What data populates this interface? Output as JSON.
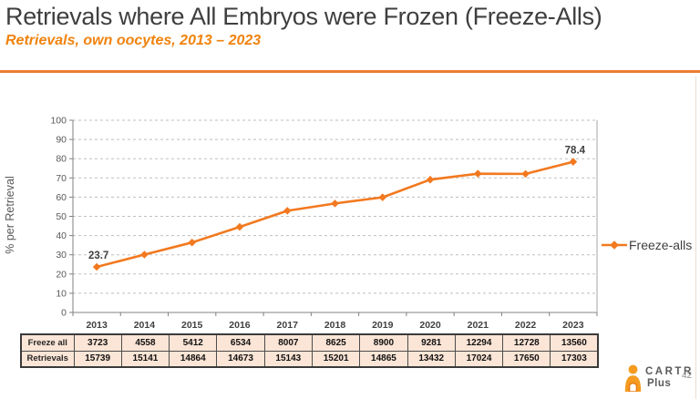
{
  "slide": {
    "title": "Retrievals where All Embryos were Frozen (Freeze-Alls)",
    "subtitle": "Retrievals, own oocytes, 2013 – 2023",
    "page_number": "42"
  },
  "logo": {
    "line1": "CARTR",
    "line2": "Plus",
    "icon": "person-icon"
  },
  "colors": {
    "accent_orange": "#f2791f",
    "subtitle_orange": "#f0830f",
    "divider_orange": "#ed7d31",
    "title_gray": "#3f3f3f",
    "axis_gray": "#595959",
    "gridline_gray": "#bfbfbf",
    "table_fill": "#fbe5d6",
    "table_border": "#4d4d4d"
  },
  "chart_data": {
    "type": "line",
    "title": "",
    "xlabel": "",
    "ylabel": "% per Retrieval",
    "categories": [
      "2013",
      "2014",
      "2015",
      "2016",
      "2017",
      "2018",
      "2019",
      "2020",
      "2021",
      "2022",
      "2023"
    ],
    "series": [
      {
        "name": "Freeze-alls",
        "color": "#f2791f",
        "marker": "diamond",
        "values": [
          23.7,
          30.1,
          36.4,
          44.5,
          52.9,
          56.7,
          59.9,
          69.1,
          72.2,
          72.1,
          78.4
        ]
      }
    ],
    "ylim": [
      0,
      100
    ],
    "ytick_step": 10,
    "grid": true,
    "gridline_style": "dashed",
    "legend_position": "right",
    "point_labels": [
      {
        "index": 0,
        "text": "23.7"
      },
      {
        "index": 10,
        "text": "78.4"
      }
    ]
  },
  "table": {
    "rows": [
      {
        "label": "Freeze all",
        "values": [
          "3723",
          "4558",
          "5412",
          "6534",
          "8007",
          "8625",
          "8900",
          "9281",
          "12294",
          "12728",
          "13560"
        ]
      },
      {
        "label": "Retrievals",
        "values": [
          "15739",
          "15141",
          "14864",
          "14673",
          "15143",
          "15201",
          "14865",
          "13432",
          "17024",
          "17650",
          "17303"
        ]
      }
    ]
  }
}
